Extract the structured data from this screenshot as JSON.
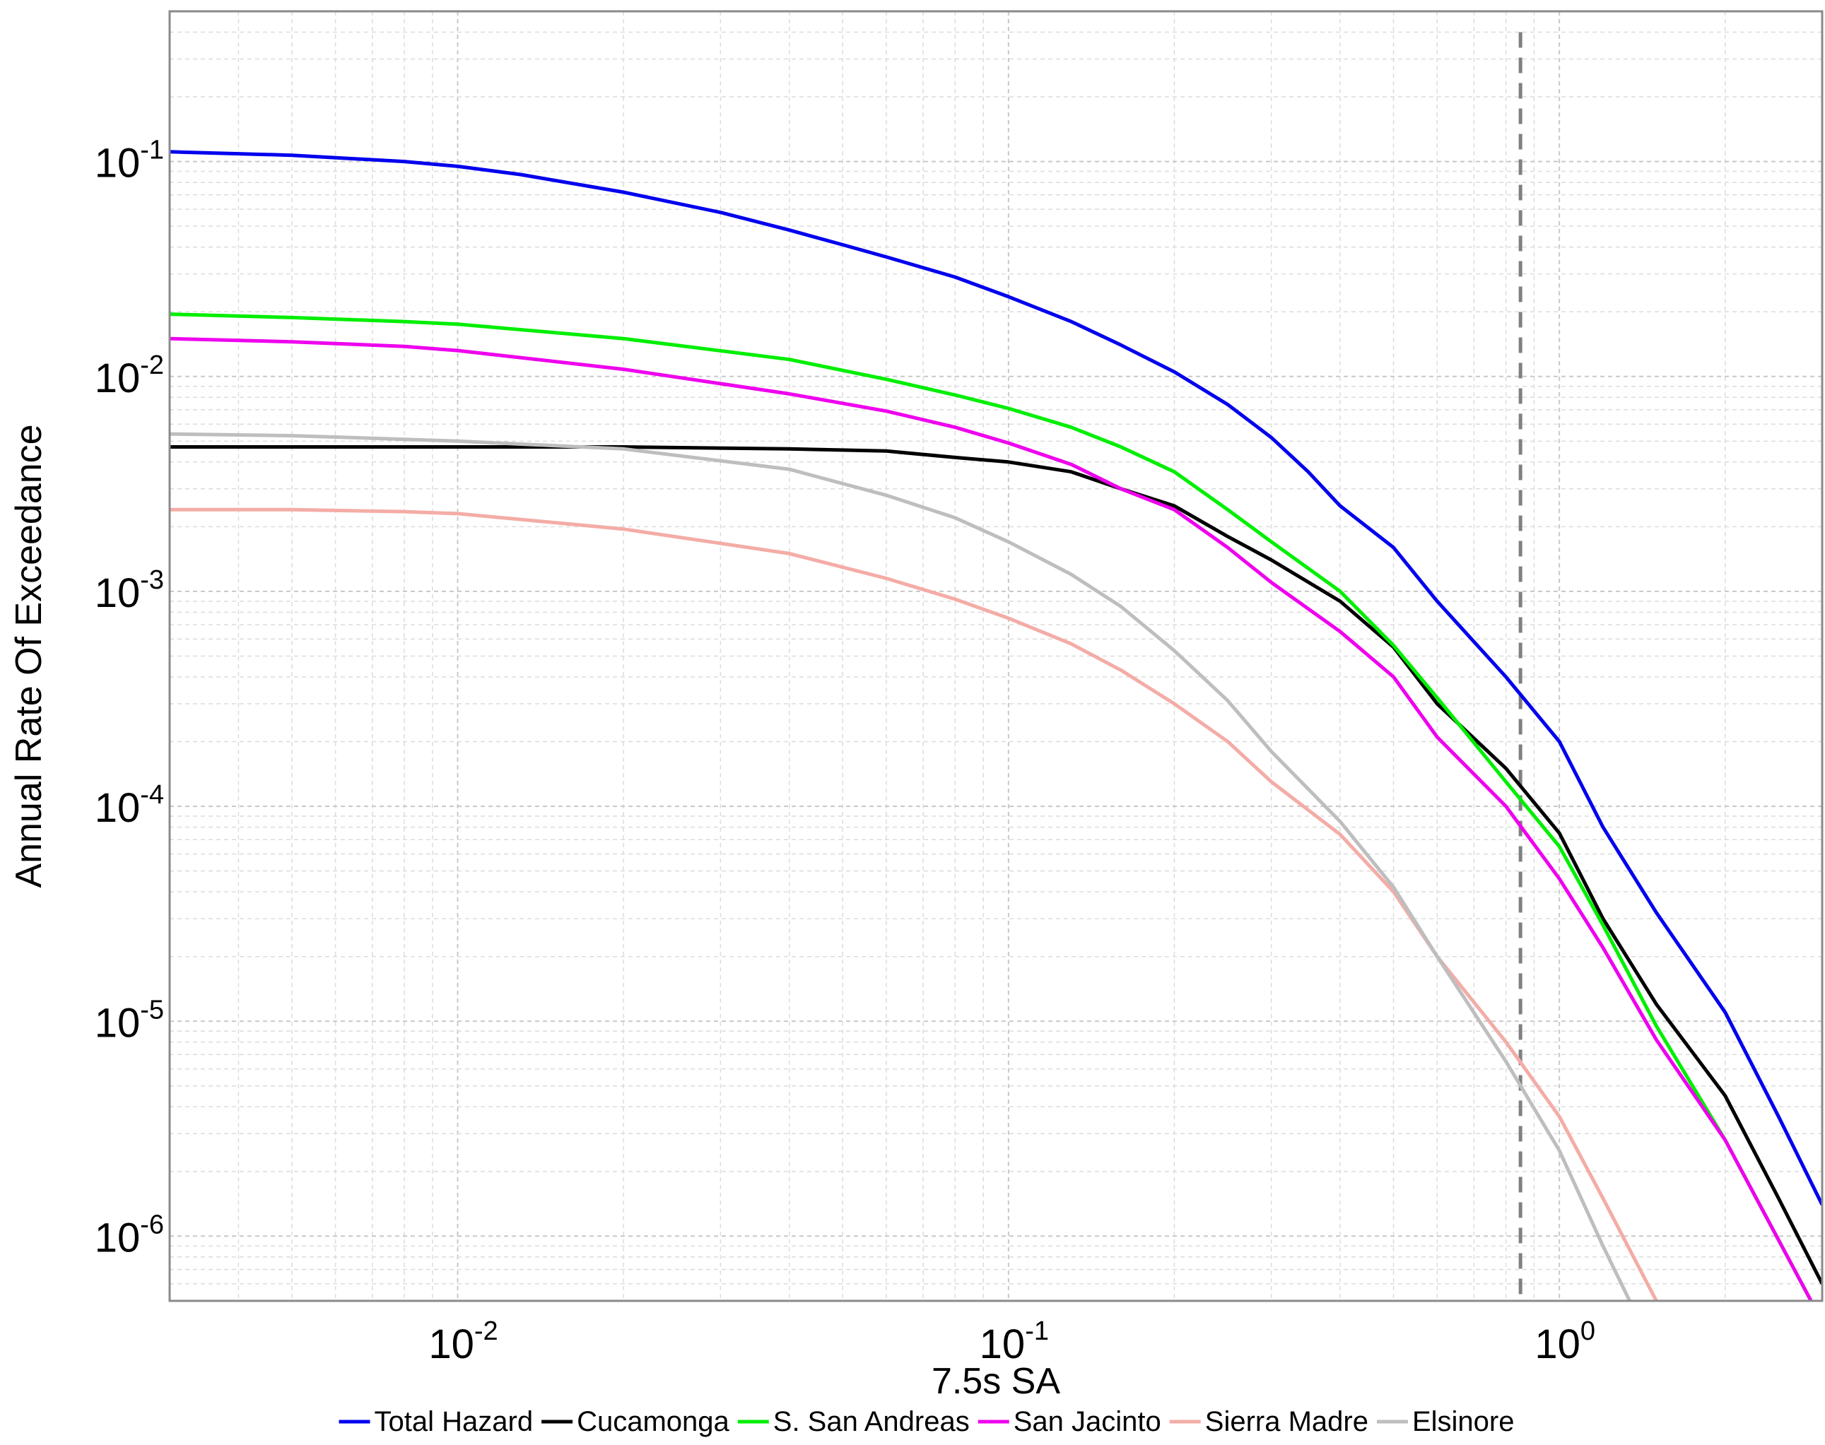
{
  "chart_data": {
    "type": "line",
    "xlabel": "7.5s SA",
    "ylabel": "Annual Rate Of Exceedance",
    "xscale": "log",
    "yscale": "log",
    "xlim": [
      0.003,
      3.0
    ],
    "ylim": [
      5e-07,
      0.5
    ],
    "grid": true,
    "legend_position": "bottom",
    "x_ticks": [
      {
        "base": "10",
        "exp": "-2",
        "value": 0.01
      },
      {
        "base": "10",
        "exp": "-1",
        "value": 0.1
      },
      {
        "base": "10",
        "exp": "0",
        "value": 1
      }
    ],
    "y_ticks": [
      {
        "base": "10",
        "exp": "-1",
        "value": 0.1
      },
      {
        "base": "10",
        "exp": "-2",
        "value": 0.01
      },
      {
        "base": "10",
        "exp": "-3",
        "value": 0.001
      },
      {
        "base": "10",
        "exp": "-4",
        "value": 0.0001
      },
      {
        "base": "10",
        "exp": "-5",
        "value": 1e-05
      },
      {
        "base": "10",
        "exp": "-6",
        "value": 1e-06
      }
    ],
    "reference_line": {
      "x": 0.85,
      "color": "#808080",
      "style": "dashed"
    },
    "series": [
      {
        "name": "Total Hazard",
        "color": "#0000ee",
        "points": [
          [
            0.003,
            0.111
          ],
          [
            0.005,
            0.107
          ],
          [
            0.008,
            0.1
          ],
          [
            0.01,
            0.095
          ],
          [
            0.013,
            0.087
          ],
          [
            0.02,
            0.072
          ],
          [
            0.03,
            0.058
          ],
          [
            0.04,
            0.048
          ],
          [
            0.05,
            0.041
          ],
          [
            0.06,
            0.036
          ],
          [
            0.08,
            0.029
          ],
          [
            0.1,
            0.0235
          ],
          [
            0.13,
            0.018
          ],
          [
            0.16,
            0.014
          ],
          [
            0.2,
            0.0105
          ],
          [
            0.25,
            0.0074
          ],
          [
            0.3,
            0.0052
          ],
          [
            0.35,
            0.0036
          ],
          [
            0.4,
            0.0025
          ],
          [
            0.5,
            0.0016
          ],
          [
            0.6,
            0.0009
          ],
          [
            0.8,
            0.0004
          ],
          [
            1.0,
            0.0002
          ],
          [
            1.2,
            8e-05
          ],
          [
            1.5,
            3.2e-05
          ],
          [
            2.0,
            1.1e-05
          ],
          [
            2.5,
            3.6e-06
          ],
          [
            3.0,
            1.4e-06
          ]
        ]
      },
      {
        "name": "Cucamonga",
        "color": "#000000",
        "points": [
          [
            0.003,
            0.0047
          ],
          [
            0.01,
            0.0047
          ],
          [
            0.02,
            0.0047
          ],
          [
            0.04,
            0.0046
          ],
          [
            0.06,
            0.0045
          ],
          [
            0.08,
            0.0042
          ],
          [
            0.1,
            0.004
          ],
          [
            0.13,
            0.0036
          ],
          [
            0.16,
            0.003
          ],
          [
            0.2,
            0.0025
          ],
          [
            0.25,
            0.0018
          ],
          [
            0.3,
            0.0014
          ],
          [
            0.4,
            0.0009
          ],
          [
            0.5,
            0.00055
          ],
          [
            0.6,
            0.0003
          ],
          [
            0.8,
            0.00015
          ],
          [
            1.0,
            7.5e-05
          ],
          [
            1.2,
            3e-05
          ],
          [
            1.5,
            1.2e-05
          ],
          [
            2.0,
            4.5e-06
          ],
          [
            2.5,
            1.5e-06
          ],
          [
            3.0,
            6e-07
          ]
        ]
      },
      {
        "name": "S. San Andreas",
        "color": "#00ee00",
        "points": [
          [
            0.003,
            0.0195
          ],
          [
            0.005,
            0.0188
          ],
          [
            0.008,
            0.018
          ],
          [
            0.01,
            0.0175
          ],
          [
            0.02,
            0.015
          ],
          [
            0.04,
            0.012
          ],
          [
            0.06,
            0.0097
          ],
          [
            0.08,
            0.0082
          ],
          [
            0.1,
            0.0071
          ],
          [
            0.13,
            0.0058
          ],
          [
            0.16,
            0.0047
          ],
          [
            0.2,
            0.0036
          ],
          [
            0.25,
            0.0024
          ],
          [
            0.3,
            0.0017
          ],
          [
            0.4,
            0.001
          ],
          [
            0.5,
            0.00056
          ],
          [
            0.6,
            0.00032
          ],
          [
            0.8,
            0.00013
          ],
          [
            1.0,
            6.5e-05
          ],
          [
            1.2,
            2.8e-05
          ],
          [
            1.5,
            9.5e-06
          ],
          [
            2.0,
            2.8e-06
          ],
          [
            3.0,
            4e-07
          ]
        ]
      },
      {
        "name": "San Jacinto",
        "color": "#ee00ee",
        "points": [
          [
            0.003,
            0.015
          ],
          [
            0.005,
            0.0145
          ],
          [
            0.008,
            0.0138
          ],
          [
            0.01,
            0.0132
          ],
          [
            0.02,
            0.0108
          ],
          [
            0.04,
            0.0083
          ],
          [
            0.06,
            0.0069
          ],
          [
            0.08,
            0.0058
          ],
          [
            0.1,
            0.0049
          ],
          [
            0.13,
            0.0039
          ],
          [
            0.16,
            0.003
          ],
          [
            0.2,
            0.0024
          ],
          [
            0.25,
            0.0016
          ],
          [
            0.3,
            0.0011
          ],
          [
            0.4,
            0.00065
          ],
          [
            0.5,
            0.0004
          ],
          [
            0.6,
            0.00021
          ],
          [
            0.8,
            0.0001
          ],
          [
            1.0,
            4.6e-05
          ],
          [
            1.2,
            2.2e-05
          ],
          [
            1.5,
            8.2e-06
          ],
          [
            2.0,
            2.8e-06
          ],
          [
            3.0,
            4e-07
          ]
        ]
      },
      {
        "name": "Sierra Madre",
        "color": "#f4aca6",
        "points": [
          [
            0.003,
            0.0024
          ],
          [
            0.005,
            0.0024
          ],
          [
            0.008,
            0.00235
          ],
          [
            0.01,
            0.0023
          ],
          [
            0.02,
            0.00195
          ],
          [
            0.04,
            0.0015
          ],
          [
            0.06,
            0.00115
          ],
          [
            0.08,
            0.00092
          ],
          [
            0.1,
            0.00075
          ],
          [
            0.13,
            0.00057
          ],
          [
            0.16,
            0.00043
          ],
          [
            0.2,
            0.0003
          ],
          [
            0.25,
            0.0002
          ],
          [
            0.3,
            0.00013
          ],
          [
            0.4,
            7.4e-05
          ],
          [
            0.5,
            4e-05
          ],
          [
            0.6,
            2e-05
          ],
          [
            0.8,
            8e-06
          ],
          [
            1.0,
            3.6e-06
          ],
          [
            1.2,
            1.5e-06
          ],
          [
            1.5,
            5e-07
          ]
        ]
      },
      {
        "name": "Elsinore",
        "color": "#bebebe",
        "points": [
          [
            0.003,
            0.0054
          ],
          [
            0.005,
            0.0053
          ],
          [
            0.008,
            0.0051
          ],
          [
            0.01,
            0.005
          ],
          [
            0.02,
            0.0046
          ],
          [
            0.04,
            0.0037
          ],
          [
            0.06,
            0.0028
          ],
          [
            0.08,
            0.0022
          ],
          [
            0.1,
            0.0017
          ],
          [
            0.13,
            0.0012
          ],
          [
            0.16,
            0.00085
          ],
          [
            0.2,
            0.00053
          ],
          [
            0.25,
            0.00031
          ],
          [
            0.3,
            0.00018
          ],
          [
            0.4,
            8.5e-05
          ],
          [
            0.5,
            4.2e-05
          ],
          [
            0.6,
            2e-05
          ],
          [
            0.8,
            6.5e-06
          ],
          [
            1.0,
            2.5e-06
          ],
          [
            1.2,
            9e-07
          ],
          [
            1.4,
            4e-07
          ]
        ]
      }
    ]
  }
}
